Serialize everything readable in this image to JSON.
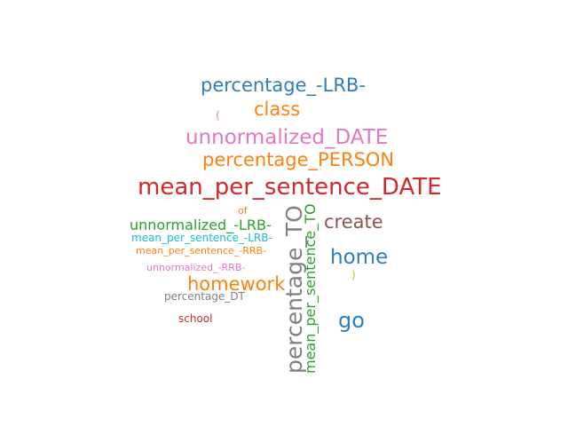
{
  "words": [
    {
      "text": "percentage_-LRB-",
      "color": "#2e7eb9"
    },
    {
      "text": "(",
      "color": "#e377c2"
    },
    {
      "text": "class",
      "color": "#ff7f0e"
    },
    {
      "text": "unnormalized_DATE",
      "color": "#e377c2"
    },
    {
      "text": "percentage_PERSON",
      "color": "#ff7f0e"
    },
    {
      "text": "mean_per_sentence_DATE",
      "color": "#d62728"
    },
    {
      "text": "of",
      "color": "#ff7f0e"
    },
    {
      "text": "unnormalized_-LRB-",
      "color": "#2ca02c"
    },
    {
      "text": "mean_per_sentence_-LRB-",
      "color": "#17becf"
    },
    {
      "text": "mean_per_sentence_-RRB-",
      "color": "#ff7f0e"
    },
    {
      "text": "unnormalized_-RRB-",
      "color": "#e377c2"
    },
    {
      "text": "homework",
      "color": "#ff7f0e"
    },
    {
      "text": "percentage_DT",
      "color": "#7f7f7f"
    },
    {
      "text": "school",
      "color": "#d62728"
    },
    {
      "text": "create",
      "color": "#8c564b"
    },
    {
      "text": "home",
      "color": "#2e7eb9"
    },
    {
      "text": ")",
      "color": "#bcbd22"
    },
    {
      "text": "go",
      "color": "#2e7eb9"
    },
    {
      "text": "percentage_TO",
      "color": "#7f7f7f",
      "orientation": "vertical"
    },
    {
      "text": "mean_per_sentence_TO",
      "color": "#2ca02c",
      "orientation": "vertical"
    }
  ]
}
